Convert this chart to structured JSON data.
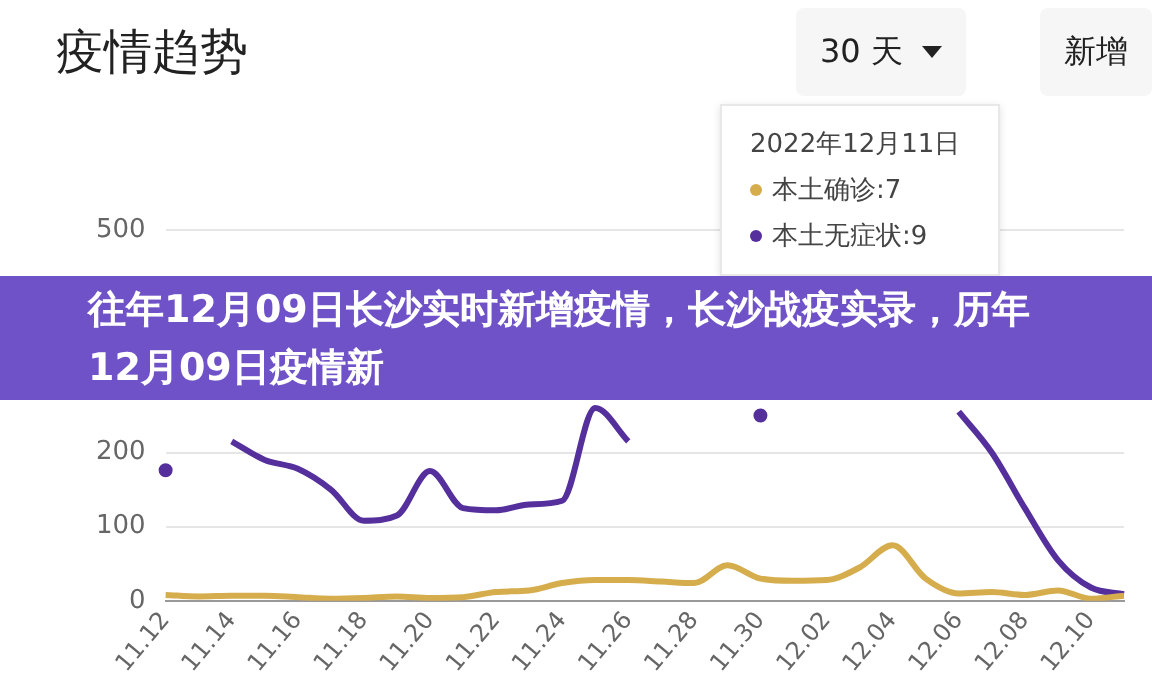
{
  "chart_data": {
    "type": "line",
    "title": "疫情趋势",
    "categories": [
      "11.12",
      null,
      "11.14",
      null,
      "11.16",
      null,
      "11.18",
      null,
      "11.20",
      null,
      "11.22",
      null,
      "11.24",
      null,
      "11.26",
      null,
      "11.28",
      null,
      "11.30",
      null,
      "12.02",
      null,
      "12.04",
      null,
      "12.06",
      null,
      "12.08",
      null,
      "12.10",
      null
    ],
    "series": [
      {
        "color": "#d6ad4c",
        "values": [
          8,
          6,
          7,
          7,
          5,
          3,
          4,
          6,
          4,
          5,
          12,
          14,
          24,
          28,
          28,
          26,
          24,
          48,
          30,
          27,
          28,
          45,
          75,
          30,
          10,
          12,
          8,
          14,
          3,
          7
        ]
      },
      {
        "color": "#55309c",
        "values": [
          176,
          null,
          215,
          190,
          178,
          150,
          108,
          115,
          175,
          125,
          122,
          130,
          135,
          260,
          215,
          null,
          null,
          null,
          250,
          null,
          null,
          null,
          null,
          null,
          255,
          200,
          125,
          55,
          18,
          9
        ]
      }
    ],
    "ylim": [
      0,
      500
    ],
    "yticks": [
      0,
      100,
      200,
      500
    ],
    "grid": "y",
    "marker": "none",
    "line_style": "solid",
    "annotations": [
      "30 天",
      "新增",
      "2022年12月11日",
      "本土确诊:7",
      "本土无症状:9",
      "往年12月09日长沙实时新增疫情，长沙战疫实录，历年12月09日疫情新"
    ]
  }
}
